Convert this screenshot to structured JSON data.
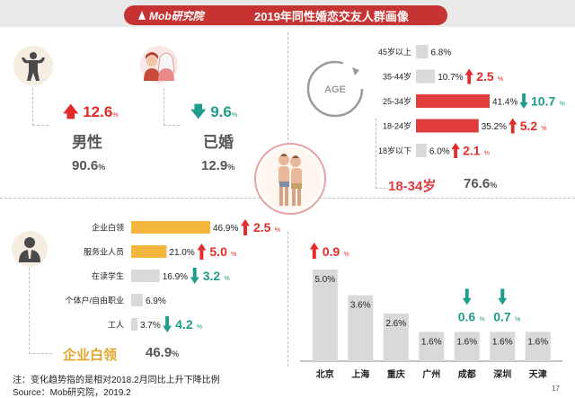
{
  "header": {
    "brand": "Mob研究院",
    "title": "2019年同性婚恋交友人群画像"
  },
  "colors": {
    "red": "#e03c3c",
    "up": "#e32b2b",
    "down": "#1f9c8a",
    "gold": "#f4b63d",
    "grey_bar": "#d9d9d9"
  },
  "male": {
    "change": "12.6",
    "change_dir": "up",
    "unit": "%",
    "label": "男性",
    "value": "90.6",
    "value_unit": "%"
  },
  "married": {
    "change": "9.6",
    "change_dir": "down",
    "unit": "%",
    "label": "已婚",
    "value": "12.9",
    "value_unit": "%"
  },
  "age_summary": {
    "icon_text": "AGE",
    "label": "18-34岁",
    "value": "76.6",
    "value_unit": "%"
  },
  "occupation_summary": {
    "label": "企业白领",
    "value": "46.9",
    "value_unit": "%"
  },
  "footnote": {
    "line1": "注：变化趋势指的是相对2018.2月同比上升下降比例",
    "line2": "Source：Mob研究院，2019.2"
  },
  "page_number": "17",
  "chart_data": [
    {
      "type": "bar",
      "orientation": "horizontal",
      "categories": [
        "45岁以上",
        "35-44岁",
        "25-34岁",
        "18-24岁",
        "18岁以下"
      ],
      "values": [
        6.8,
        10.7,
        41.4,
        35.2,
        6.0
      ],
      "value_labels": [
        "6.8%",
        "10.7%",
        "41.4%",
        "35.2%",
        "6.0%"
      ],
      "highlight": [
        false,
        false,
        true,
        true,
        false
      ],
      "changes": [
        {
          "value": "",
          "dir": ""
        },
        {
          "value": "2.5",
          "dir": "up"
        },
        {
          "value": "10.7",
          "dir": "down"
        },
        {
          "value": "5.2",
          "dir": "up"
        },
        {
          "value": "2.1",
          "dir": "up"
        }
      ],
      "change_unit": "%"
    },
    {
      "type": "bar",
      "orientation": "horizontal",
      "categories": [
        "企业白领",
        "服务业人员",
        "在读学生",
        "个体户/自由职业",
        "工人"
      ],
      "values": [
        46.9,
        21.0,
        16.9,
        6.9,
        3.7
      ],
      "value_labels": [
        "46.9%",
        "21.0%",
        "16.9%",
        "6.9%",
        "3.7%"
      ],
      "highlight": [
        true,
        true,
        false,
        false,
        false
      ],
      "changes": [
        {
          "value": "2.5",
          "dir": "up"
        },
        {
          "value": "5.0",
          "dir": "up"
        },
        {
          "value": "3.2",
          "dir": "down"
        },
        {
          "value": "",
          "dir": ""
        },
        {
          "value": "4.2",
          "dir": "down"
        }
      ],
      "change_unit": "%"
    },
    {
      "type": "bar",
      "orientation": "vertical",
      "categories": [
        "北京",
        "上海",
        "重庆",
        "广州",
        "成都",
        "深圳",
        "天津"
      ],
      "values": [
        5.0,
        3.6,
        2.6,
        1.6,
        1.6,
        1.6,
        1.6
      ],
      "value_labels": [
        "5.0%",
        "3.6%",
        "2.6%",
        "1.6%",
        "1.6%",
        "1.6%",
        "1.6%"
      ],
      "changes": [
        {
          "value": "0.9",
          "dir": "up"
        },
        {
          "value": "",
          "dir": ""
        },
        {
          "value": "",
          "dir": ""
        },
        {
          "value": "",
          "dir": ""
        },
        {
          "value": "0.6",
          "dir": "down"
        },
        {
          "value": "0.7",
          "dir": "down"
        },
        {
          "value": "",
          "dir": ""
        }
      ],
      "change_unit": "%"
    }
  ]
}
